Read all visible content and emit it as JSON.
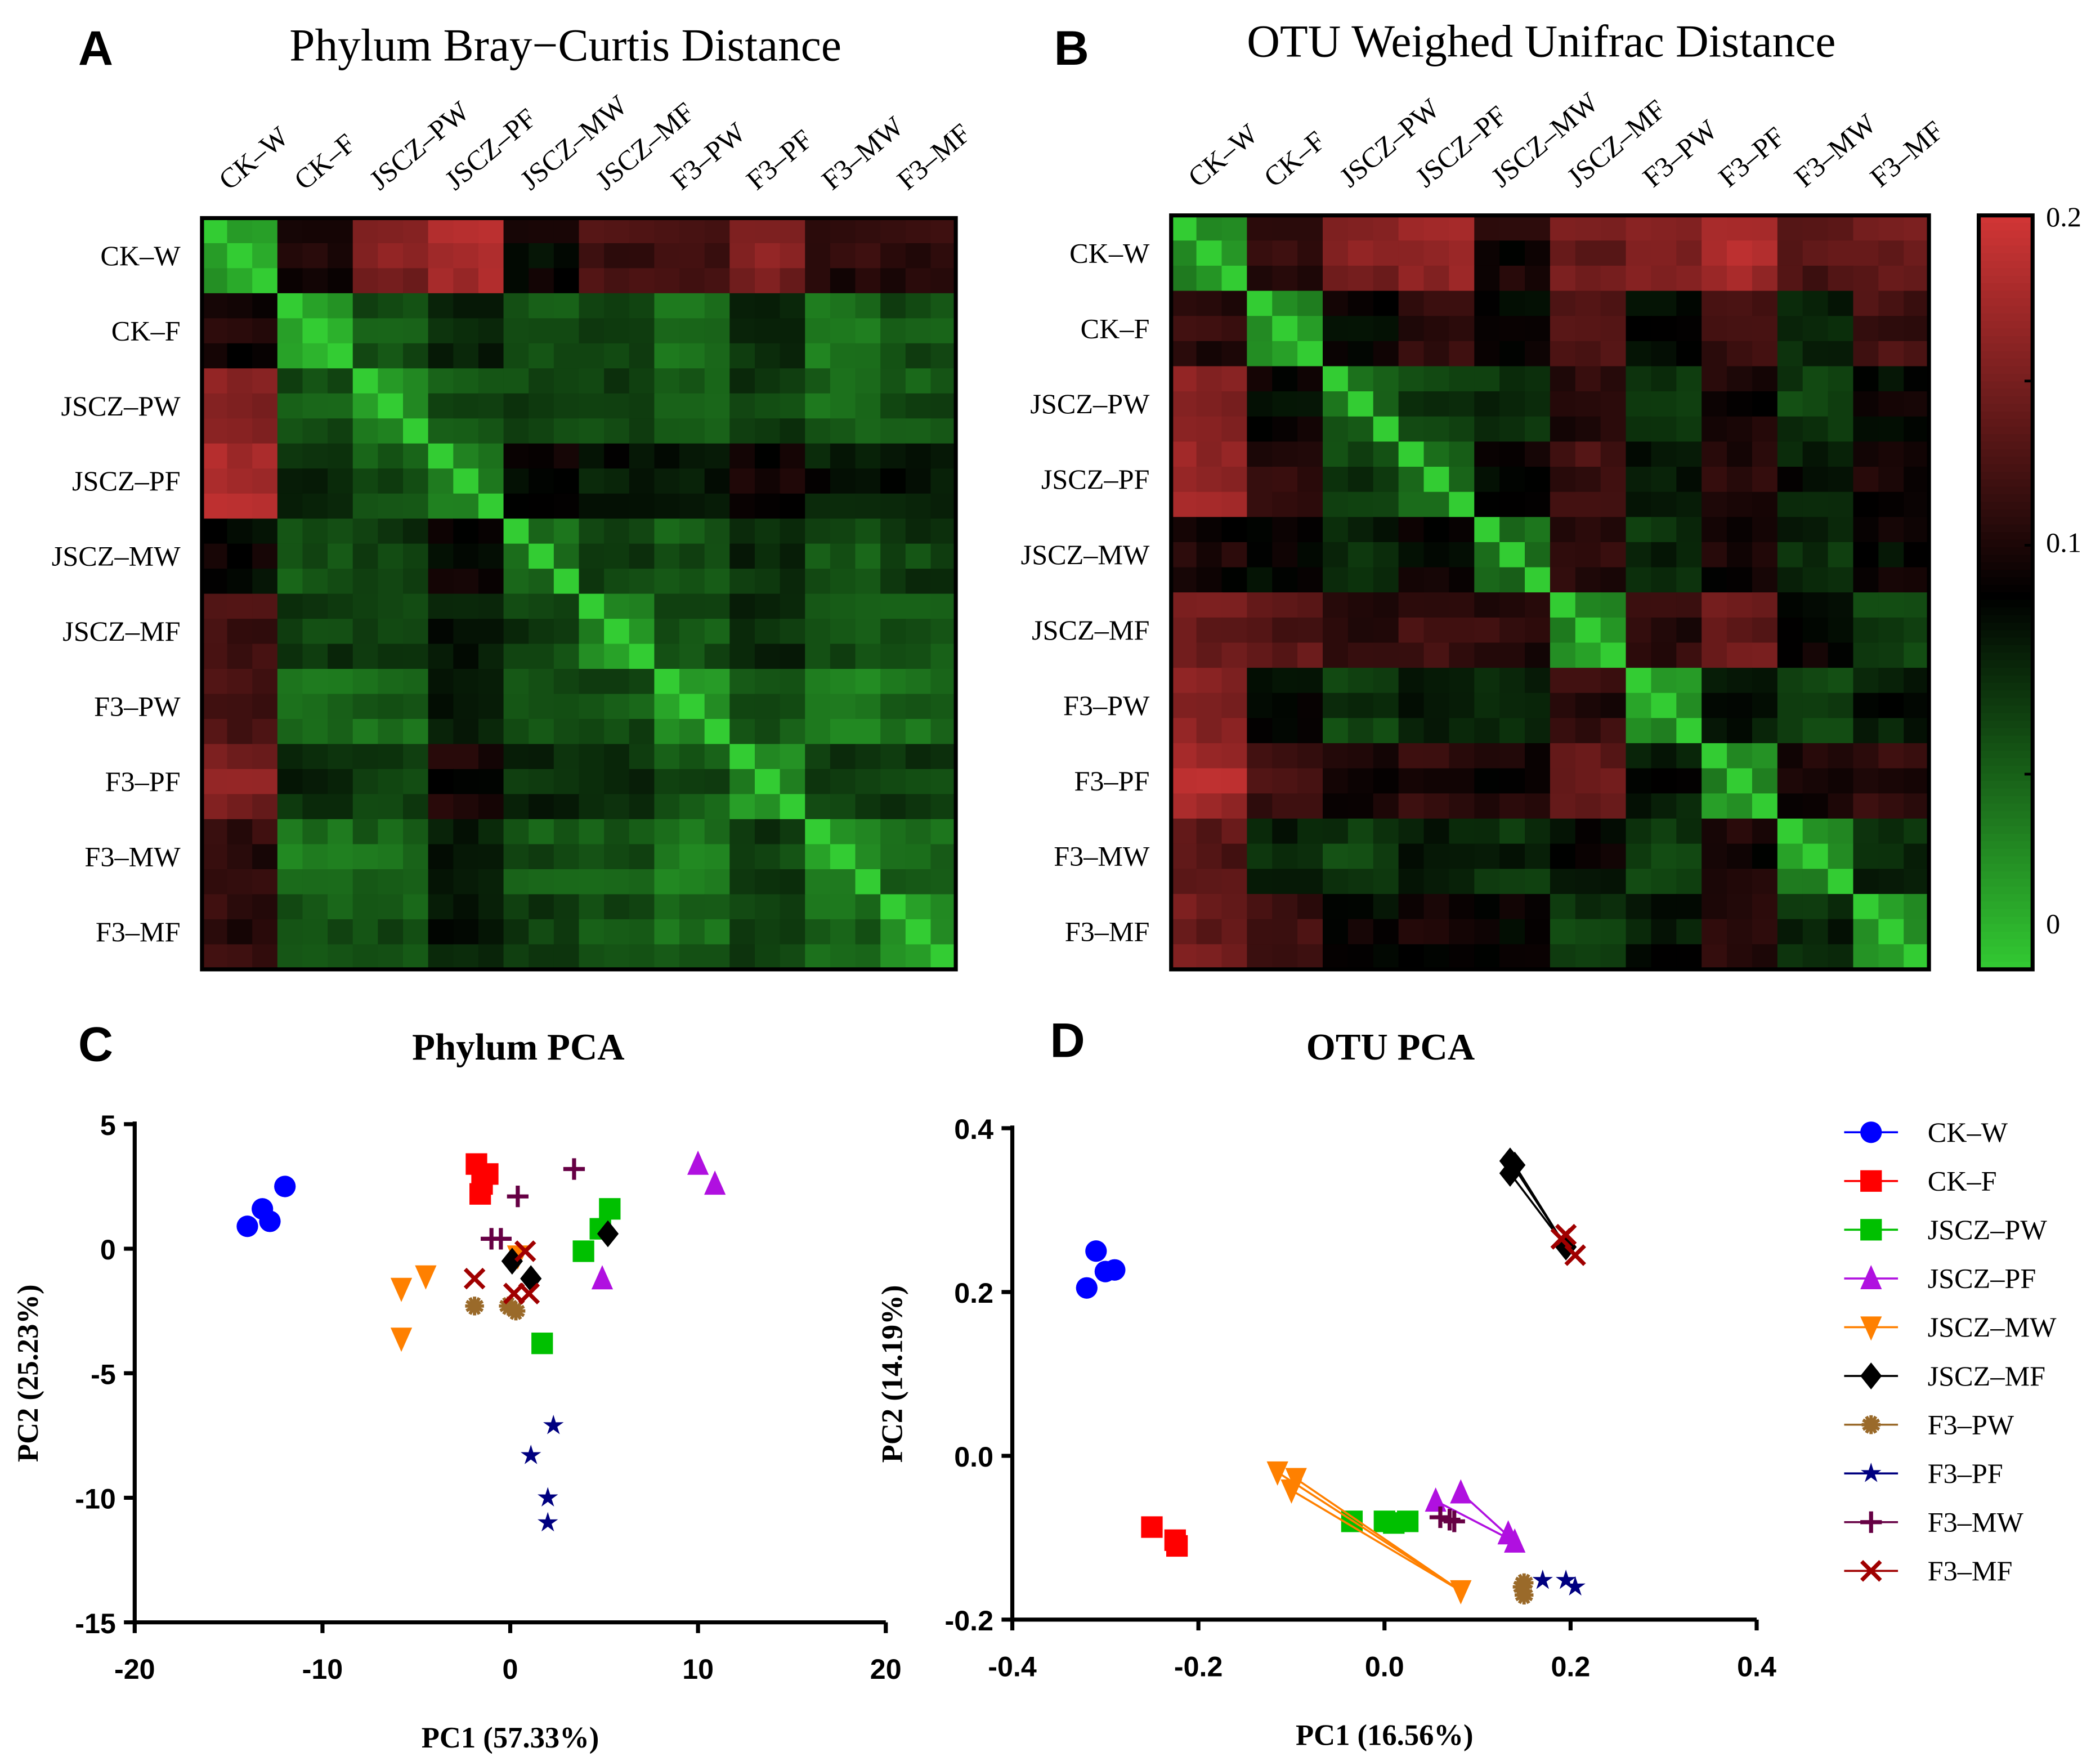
{
  "groups": [
    "CK–W",
    "CK–F",
    "JSCZ–PW",
    "JSCZ–PF",
    "JSCZ–MW",
    "JSCZ–MF",
    "F3–PW",
    "F3–PF",
    "F3–MW",
    "F3–MF"
  ],
  "colors": {
    "CK–W": "#0000ff",
    "CK–F": "#ff0000",
    "JSCZ–PW": "#00c000",
    "JSCZ–PF": "#b010e0",
    "JSCZ–MW": "#ff8000",
    "JSCZ–MF": "#000000",
    "F3–PW": "#9a6a2a",
    "F3–PF": "#000080",
    "F3–MW": "#660044",
    "F3–MF": "#a00000"
  },
  "markers": {
    "CK–W": "circle",
    "CK–F": "square",
    "JSCZ–PW": "square",
    "JSCZ–PF": "triangle",
    "JSCZ–MW": "down-triangle",
    "JSCZ–MF": "diamond",
    "F3–PW": "asterisk",
    "F3–PF": "star",
    "F3–MW": "plus",
    "F3–MF": "x"
  },
  "heat_colors": {
    "low": "#33cc33",
    "mid": "#000000",
    "high": "#d03535"
  },
  "chart_data": [
    {
      "panel": "A",
      "type": "heatmap",
      "title": "Phylum Bray−Curtis Distance",
      "replicates_per_group": 3,
      "value_range": [
        0,
        0.2
      ],
      "matrix": [
        [
          0.02,
          0.11,
          0.16,
          0.18,
          0.1,
          0.13,
          0.13,
          0.16,
          0.12,
          0.12
        ],
        [
          0.11,
          0.02,
          0.06,
          0.08,
          0.06,
          0.07,
          0.05,
          0.08,
          0.04,
          0.06
        ],
        [
          0.16,
          0.06,
          0.03,
          0.06,
          0.07,
          0.07,
          0.05,
          0.07,
          0.05,
          0.06
        ],
        [
          0.18,
          0.08,
          0.06,
          0.04,
          0.1,
          0.09,
          0.09,
          0.11,
          0.09,
          0.09
        ],
        [
          0.1,
          0.06,
          0.07,
          0.1,
          0.05,
          0.07,
          0.06,
          0.08,
          0.06,
          0.07
        ],
        [
          0.13,
          0.07,
          0.07,
          0.09,
          0.07,
          0.03,
          0.06,
          0.08,
          0.06,
          0.06
        ],
        [
          0.13,
          0.05,
          0.05,
          0.09,
          0.06,
          0.06,
          0.03,
          0.06,
          0.04,
          0.05
        ],
        [
          0.16,
          0.08,
          0.07,
          0.11,
          0.08,
          0.08,
          0.06,
          0.03,
          0.07,
          0.07
        ],
        [
          0.12,
          0.04,
          0.05,
          0.09,
          0.06,
          0.06,
          0.04,
          0.07,
          0.03,
          0.05
        ],
        [
          0.12,
          0.06,
          0.06,
          0.09,
          0.07,
          0.06,
          0.05,
          0.07,
          0.05,
          0.03
        ]
      ]
    },
    {
      "panel": "B",
      "type": "heatmap",
      "title": "OTU Weighed Unifrac Distance",
      "replicates_per_group": 3,
      "value_range": [
        0,
        0.2
      ],
      "colorbar_ticks": [
        "0.2",
        "0.1",
        "0"
      ],
      "matrix": [
        [
          0.03,
          0.12,
          0.16,
          0.17,
          0.11,
          0.15,
          0.16,
          0.18,
          0.14,
          0.15
        ],
        [
          0.12,
          0.03,
          0.1,
          0.12,
          0.1,
          0.14,
          0.1,
          0.13,
          0.08,
          0.13
        ],
        [
          0.16,
          0.1,
          0.05,
          0.07,
          0.08,
          0.12,
          0.07,
          0.11,
          0.07,
          0.1
        ],
        [
          0.17,
          0.12,
          0.07,
          0.05,
          0.1,
          0.13,
          0.09,
          0.12,
          0.09,
          0.11
        ],
        [
          0.11,
          0.1,
          0.08,
          0.1,
          0.05,
          0.12,
          0.08,
          0.11,
          0.08,
          0.1
        ],
        [
          0.15,
          0.14,
          0.12,
          0.13,
          0.12,
          0.03,
          0.12,
          0.15,
          0.1,
          0.07
        ],
        [
          0.16,
          0.1,
          0.07,
          0.09,
          0.08,
          0.12,
          0.03,
          0.09,
          0.07,
          0.09
        ],
        [
          0.18,
          0.13,
          0.11,
          0.12,
          0.11,
          0.15,
          0.09,
          0.03,
          0.11,
          0.12
        ],
        [
          0.14,
          0.08,
          0.07,
          0.09,
          0.08,
          0.1,
          0.07,
          0.11,
          0.03,
          0.08
        ],
        [
          0.15,
          0.13,
          0.1,
          0.11,
          0.1,
          0.07,
          0.09,
          0.12,
          0.08,
          0.03
        ]
      ]
    },
    {
      "panel": "C",
      "type": "scatter",
      "title": "Phylum PCA",
      "xlabel": "PC1 (57.33%)",
      "ylabel": "PC2 (25.23%)",
      "xlim": [
        -20,
        20
      ],
      "ylim": [
        -15,
        5
      ],
      "xticks": [
        "-20",
        "-10",
        "0",
        "10",
        "20"
      ],
      "yticks": [
        "5",
        "0",
        "-5",
        "-10",
        "-15"
      ],
      "series": [
        {
          "name": "CK–W",
          "points": [
            [
              -14,
              0.9
            ],
            [
              -13.2,
              1.6
            ],
            [
              -12.8,
              1.1
            ],
            [
              -12,
              2.5
            ]
          ]
        },
        {
          "name": "CK–F",
          "points": [
            [
              -1.8,
              3.4
            ],
            [
              -1.2,
              3.0
            ],
            [
              -1.6,
              2.2
            ],
            [
              -1.5,
              2.6
            ]
          ]
        },
        {
          "name": "JSCZ–PW",
          "points": [
            [
              5.3,
              1.6
            ],
            [
              4.8,
              0.8
            ],
            [
              3.9,
              -0.1
            ],
            [
              1.7,
              -3.8
            ]
          ]
        },
        {
          "name": "JSCZ–PF",
          "points": [
            [
              10,
              3.4
            ],
            [
              10.9,
              2.6
            ],
            [
              4.9,
              -1.2
            ]
          ]
        },
        {
          "name": "JSCZ–MW",
          "points": [
            [
              -5.8,
              -1.6
            ],
            [
              -4.5,
              -1.1
            ],
            [
              -5.8,
              -3.6
            ],
            [
              0.4,
              -0.3
            ]
          ]
        },
        {
          "name": "JSCZ–MF",
          "points": [
            [
              0.1,
              -0.5
            ],
            [
              1.1,
              -1.2
            ],
            [
              5.2,
              0.6
            ]
          ]
        },
        {
          "name": "F3–PW",
          "points": [
            [
              -1.9,
              -2.3
            ],
            [
              -0.1,
              -2.3
            ],
            [
              0.3,
              -2.5
            ]
          ]
        },
        {
          "name": "F3–PF",
          "points": [
            [
              2.3,
              -7.1
            ],
            [
              1.1,
              -8.3
            ],
            [
              2.0,
              -10
            ],
            [
              2.0,
              -11
            ]
          ]
        },
        {
          "name": "F3–MW",
          "points": [
            [
              3.4,
              3.2
            ],
            [
              0.4,
              2.1
            ],
            [
              -1.0,
              0.4
            ],
            [
              -0.5,
              0.4
            ]
          ]
        },
        {
          "name": "F3–MF",
          "points": [
            [
              -1.9,
              -1.2
            ],
            [
              0.8,
              -0.1
            ],
            [
              0.2,
              -1.8
            ],
            [
              1.0,
              -1.8
            ]
          ]
        }
      ]
    },
    {
      "panel": "D",
      "type": "scatter",
      "title": "OTU PCA",
      "xlabel": "PC1 (16.56%)",
      "ylabel": "PC2 (14.19%)",
      "xlim": [
        -0.4,
        0.4
      ],
      "ylim": [
        -0.2,
        0.4
      ],
      "xticks": [
        "-0.4",
        "-0.2",
        "0.0",
        "0.2",
        "0.4"
      ],
      "yticks": [
        "0.4",
        "0.2",
        "0.0",
        "-0.2"
      ],
      "legend": "right",
      "series": [
        {
          "name": "CK–W",
          "points": [
            [
              -0.31,
              0.25
            ],
            [
              -0.3,
              0.225
            ],
            [
              -0.29,
              0.227
            ],
            [
              -0.32,
              0.205
            ]
          ]
        },
        {
          "name": "CK–F",
          "points": [
            [
              -0.25,
              -0.087
            ],
            [
              -0.225,
              -0.103
            ],
            [
              -0.223,
              -0.11
            ]
          ]
        },
        {
          "name": "JSCZ–PW",
          "points": [
            [
              -0.035,
              -0.08
            ],
            [
              0,
              -0.08
            ],
            [
              0.01,
              -0.082
            ],
            [
              0.025,
              -0.08
            ]
          ]
        },
        {
          "name": "JSCZ–PF",
          "points": [
            [
              0.055,
              -0.055
            ],
            [
              0.082,
              -0.045
            ],
            [
              0.133,
              -0.095
            ],
            [
              0.14,
              -0.105
            ]
          ],
          "connect": true
        },
        {
          "name": "JSCZ–MW",
          "points": [
            [
              -0.115,
              -0.02
            ],
            [
              -0.095,
              -0.028
            ],
            [
              -0.1,
              -0.042
            ],
            [
              0.082,
              -0.165
            ]
          ],
          "connect": true
        },
        {
          "name": "JSCZ–MF",
          "points": [
            [
              0.135,
              0.36
            ],
            [
              0.14,
              0.355
            ],
            [
              0.135,
              0.345
            ],
            [
              0.195,
              0.255
            ]
          ],
          "connect": true
        },
        {
          "name": "F3–PW",
          "points": [
            [
              0.148,
              -0.16
            ],
            [
              0.15,
              -0.17
            ],
            [
              0.15,
              -0.155
            ]
          ]
        },
        {
          "name": "F3–PF",
          "points": [
            [
              0.17,
              -0.152
            ],
            [
              0.195,
              -0.152
            ],
            [
              0.205,
              -0.16
            ]
          ]
        },
        {
          "name": "F3–MW",
          "points": [
            [
              0.06,
              -0.075
            ],
            [
              0.07,
              -0.078
            ],
            [
              0.075,
              -0.08
            ]
          ]
        },
        {
          "name": "F3–MF",
          "points": [
            [
              0.195,
              0.27
            ],
            [
              0.205,
              0.245
            ],
            [
              0.19,
              0.265
            ]
          ]
        }
      ]
    }
  ],
  "panel_letters": [
    "A",
    "B",
    "C",
    "D"
  ]
}
